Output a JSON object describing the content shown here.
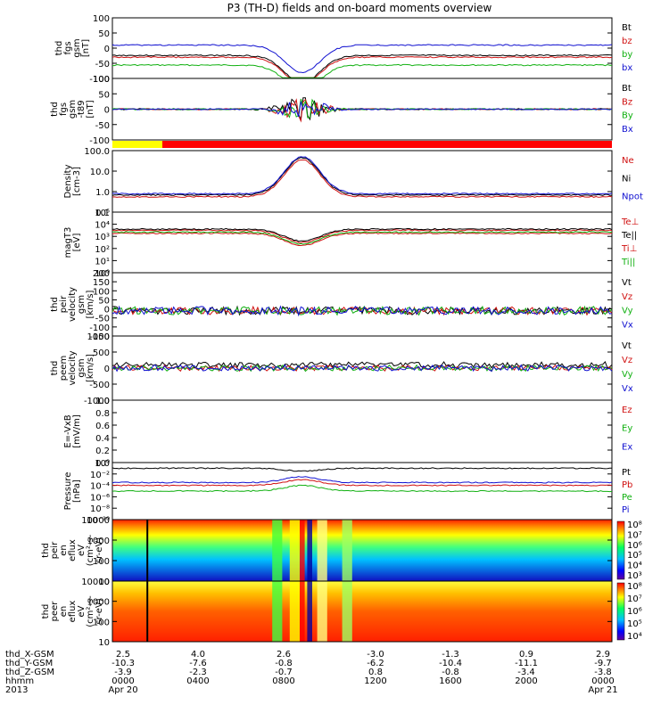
{
  "title": "P3 (TH-D) fields and on-board moments overview",
  "panels": [
    {
      "id": "fgs",
      "ylabel": [
        "thd",
        "fgs",
        "gsm",
        "[nT]"
      ],
      "ticks": [
        "100",
        "50",
        "0",
        "-50",
        "-100"
      ],
      "legend": [
        {
          "text": "Bt",
          "color": "#000000"
        },
        {
          "text": "bz",
          "color": "#d01010"
        },
        {
          "text": "by",
          "color": "#10b010"
        },
        {
          "text": "bx",
          "color": "#1010d0"
        }
      ],
      "log": false,
      "ylim": [
        -100,
        100
      ]
    },
    {
      "id": "fgs_ex",
      "ylabel": [
        "thd",
        "fgs",
        "gsm",
        "-t89",
        "[nT]"
      ],
      "ticks": [
        "100",
        "50",
        "0",
        "-50",
        "-100"
      ],
      "legend": [
        {
          "text": "Bt",
          "color": "#000000"
        },
        {
          "text": "Bz",
          "color": "#d01010"
        },
        {
          "text": "By",
          "color": "#10b010"
        },
        {
          "text": "Bx",
          "color": "#1010d0"
        }
      ],
      "log": false,
      "ylim": [
        -120,
        120
      ]
    },
    {
      "id": "density",
      "ylabel": [
        "Density",
        "[cm-3]"
      ],
      "ticks": [
        "100.0",
        "10.0",
        "1.0",
        "0.1"
      ],
      "legend": [
        {
          "text": "Ne",
          "color": "#d01010"
        },
        {
          "text": "Ni",
          "color": "#000000"
        },
        {
          "text": "Npot",
          "color": "#1010d0"
        }
      ],
      "log": true,
      "ylim": [
        0.05,
        300
      ]
    },
    {
      "id": "temp",
      "ylabel": [
        "magT3",
        "[eV]"
      ],
      "ticks": [
        "10⁵",
        "10⁴",
        "10³",
        "10²",
        "10¹",
        "10⁰"
      ],
      "legend": [
        {
          "text": "Te⊥",
          "color": "#d01010"
        },
        {
          "text": "Te||",
          "color": "#000000"
        },
        {
          "text": "Ti⊥",
          "color": "#d01010"
        },
        {
          "text": "Ti||",
          "color": "#10b010"
        }
      ],
      "log": true,
      "ylim": [
        1,
        100000
      ]
    },
    {
      "id": "peir_vel",
      "ylabel": [
        "thd",
        "peir",
        "velocity",
        "gsm",
        "[km/s]"
      ],
      "ticks": [
        "200",
        "150",
        "100",
        "50",
        "0",
        "-50",
        "-100",
        "-150"
      ],
      "legend": [
        {
          "text": "Vt",
          "color": "#000000"
        },
        {
          "text": "Vz",
          "color": "#d01010"
        },
        {
          "text": "Vy",
          "color": "#10b010"
        },
        {
          "text": "Vx",
          "color": "#1010d0"
        }
      ],
      "log": false,
      "ylim": [
        -150,
        200
      ]
    },
    {
      "id": "peem_vel",
      "ylabel": [
        "thd",
        "peem",
        "velocity",
        "gsm",
        "[km/s]"
      ],
      "ticks": [
        "1000",
        "500",
        "0",
        "-500",
        "-1000"
      ],
      "legend": [
        {
          "text": "Vt",
          "color": "#000000"
        },
        {
          "text": "Vz",
          "color": "#d01010"
        },
        {
          "text": "Vy",
          "color": "#10b010"
        },
        {
          "text": "Vx",
          "color": "#1010d0"
        }
      ],
      "log": false,
      "ylim": [
        -1200,
        1200
      ]
    },
    {
      "id": "efield",
      "ylabel": [
        "E=-VxB",
        "[mV/m]"
      ],
      "ticks": [
        "1.0",
        "0.8",
        "0.6",
        "0.4",
        "0.2",
        "0.0"
      ],
      "legend": [
        {
          "text": "Ez",
          "color": "#d01010"
        },
        {
          "text": "Ey",
          "color": "#10b010"
        },
        {
          "text": "Ex",
          "color": "#1010d0"
        }
      ],
      "log": false,
      "ylim": [
        0,
        1
      ]
    },
    {
      "id": "pressure",
      "ylabel": [
        "Pressure",
        "[nPa]"
      ],
      "ticks": [
        "10⁰",
        "10⁻²",
        "10⁻⁴",
        "10⁻⁶",
        "10⁻⁸",
        "10⁻¹⁰"
      ],
      "legend": [
        {
          "text": "Pt",
          "color": "#000000"
        },
        {
          "text": "Pb",
          "color": "#d01010"
        },
        {
          "text": "Pe",
          "color": "#10b010"
        },
        {
          "text": "Pi",
          "color": "#1010d0"
        }
      ],
      "log": true,
      "ylim": [
        1e-10,
        10
      ]
    },
    {
      "id": "peir_spec",
      "ylabel": [
        "thd",
        "peir",
        "en",
        "eflux",
        "eV",
        "(cm²-s-",
        "sr-eV)"
      ],
      "ticks": [
        "10000",
        "1000",
        "100",
        "10"
      ],
      "legend": [],
      "log": true,
      "ylim": [
        6,
        20000
      ],
      "colorbar": [
        "10⁸",
        "10⁷",
        "10⁶",
        "10⁵",
        "10⁴",
        "10³"
      ]
    },
    {
      "id": "peer_spec",
      "ylabel": [
        "thd",
        "peer",
        "en",
        "eflux",
        "eV",
        "(cm²-s-",
        "sr-eV)"
      ],
      "ticks": [
        "10000",
        "1000",
        "100",
        "10"
      ],
      "legend": [],
      "log": true,
      "ylim": [
        6,
        20000
      ],
      "colorbar": [
        "10⁸",
        "10⁷",
        "10⁶",
        "10⁵",
        "10⁴"
      ]
    }
  ],
  "footer": {
    "rows": [
      {
        "label": "thd_X-GSM",
        "values": [
          "2.5",
          "4.0",
          "2.6",
          "-3.0",
          "-1.3",
          "0.9",
          "2.9"
        ]
      },
      {
        "label": "thd_Y-GSM",
        "values": [
          "-10.3",
          "-7.6",
          "-0.8",
          "-6.2",
          "-10.4",
          "-11.1",
          "-9.7"
        ]
      },
      {
        "label": "thd_Z-GSM",
        "values": [
          "-3.9",
          "-2.3",
          "-0.7",
          "0.8",
          "-0.8",
          "-3.4",
          "-3.8"
        ]
      },
      {
        "label": "hhmm",
        "values": [
          "0000",
          "0400",
          "0800",
          "1200",
          "1600",
          "2000",
          "0000"
        ]
      },
      {
        "label": "2013",
        "values": [
          "Apr 20",
          "",
          "",
          "",
          "",
          "",
          "Apr 21"
        ]
      }
    ]
  },
  "chart_data": {
    "type": "line",
    "title": "P3 (TH-D) fields and on-board moments overview",
    "x": [
      "0000",
      "0400",
      "0800",
      "1200",
      "1600",
      "2000",
      "0000"
    ],
    "xlabel": "hhmm",
    "series": [
      {
        "name": "Bt",
        "values": [
          40,
          60,
          100,
          60,
          30,
          25,
          30
        ]
      },
      {
        "name": "bz",
        "values": [
          30,
          50,
          -100,
          55,
          25,
          20,
          25
        ]
      },
      {
        "name": "by",
        "values": [
          -20,
          -30,
          100,
          -10,
          -8,
          -5,
          -10
        ]
      },
      {
        "name": "bx",
        "values": [
          5,
          15,
          80,
          25,
          5,
          0,
          5
        ]
      },
      {
        "name": "Ni",
        "values": [
          0.5,
          0.4,
          30,
          0.6,
          0.3,
          0.3,
          1
        ]
      },
      {
        "name": "Ne",
        "values": [
          0.5,
          0.4,
          3,
          0.5,
          0.3,
          0.3,
          1
        ]
      },
      {
        "name": "Npot",
        "values": [
          0.5,
          1,
          100,
          0.5,
          0.3,
          0.3,
          2
        ]
      }
    ]
  }
}
